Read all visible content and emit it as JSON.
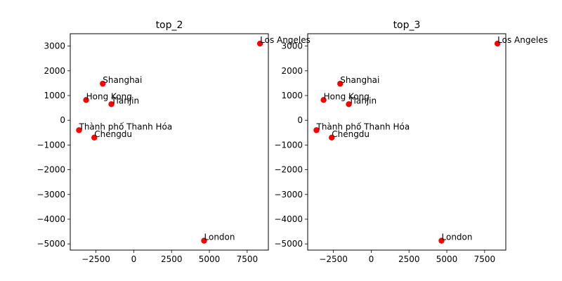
{
  "chart_data": [
    {
      "type": "scatter",
      "title": "top_2",
      "xlabel": "",
      "ylabel": "",
      "xlim": [
        -4200,
        8900
      ],
      "ylim": [
        -5250,
        3500
      ],
      "xticks": [
        -2500,
        0,
        2500,
        5000,
        7500
      ],
      "xtick_labels": [
        "−2500",
        "0",
        "2500",
        "5000",
        "7500"
      ],
      "yticks": [
        -5000,
        -4000,
        -3000,
        -2000,
        -1000,
        0,
        1000,
        2000,
        3000
      ],
      "ytick_labels": [
        "−5000",
        "−4000",
        "−3000",
        "−2000",
        "−1000",
        "0",
        "1000",
        "2000",
        "3000"
      ],
      "grid": false,
      "marker_color": "#ff0000",
      "points": [
        {
          "label": "Los Angeles",
          "x": 8350,
          "y": 3100
        },
        {
          "label": "Shanghai",
          "x": -2050,
          "y": 1480
        },
        {
          "label": "Hong Kong",
          "x": -3150,
          "y": 820
        },
        {
          "label": "Tianjin",
          "x": -1480,
          "y": 650
        },
        {
          "label": "Thành phố Thanh Hóa",
          "x": -3620,
          "y": -400
        },
        {
          "label": "Chengdu",
          "x": -2610,
          "y": -700
        },
        {
          "label": "London",
          "x": 4650,
          "y": -4870
        }
      ]
    },
    {
      "type": "scatter",
      "title": "top_3",
      "xlabel": "",
      "ylabel": "",
      "xlim": [
        -4200,
        8900
      ],
      "ylim": [
        -5250,
        3500
      ],
      "xticks": [
        -2500,
        0,
        2500,
        5000,
        7500
      ],
      "xtick_labels": [
        "−2500",
        "0",
        "2500",
        "5000",
        "7500"
      ],
      "yticks": [
        -5000,
        -4000,
        -3000,
        -2000,
        -1000,
        0,
        1000,
        2000,
        3000
      ],
      "ytick_labels": [
        "−5000",
        "−4000",
        "−3000",
        "−2000",
        "−1000",
        "0",
        "1000",
        "2000",
        "3000"
      ],
      "grid": false,
      "marker_color": "#ff0000",
      "points": [
        {
          "label": "Los Angeles",
          "x": 8350,
          "y": 3100
        },
        {
          "label": "Shanghai",
          "x": -2050,
          "y": 1480
        },
        {
          "label": "Hong Kong",
          "x": -3150,
          "y": 820
        },
        {
          "label": "Tianjin",
          "x": -1480,
          "y": 650
        },
        {
          "label": "Thành phố Thanh Hóa",
          "x": -3620,
          "y": -400
        },
        {
          "label": "Chengdu",
          "x": -2610,
          "y": -700
        },
        {
          "label": "London",
          "x": 4650,
          "y": -4870
        }
      ]
    }
  ]
}
